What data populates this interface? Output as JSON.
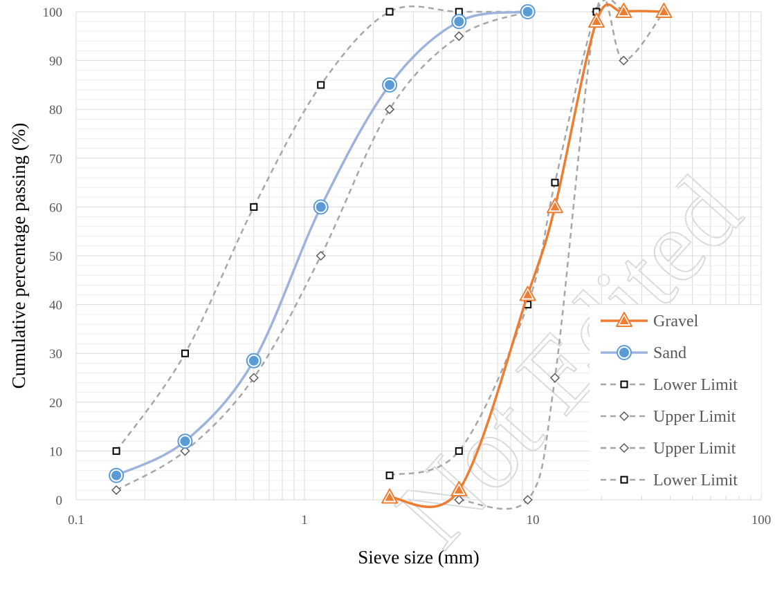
{
  "chart_data": {
    "type": "line",
    "xscale": "log",
    "xlabel": "Sieve size (mm)",
    "ylabel": "Cumulative percentage passing (%)",
    "xlim": [
      0.1,
      100
    ],
    "ylim": [
      0,
      100
    ],
    "x_ticks": [
      "0.1",
      "1",
      "10",
      "100"
    ],
    "y_ticks": [
      "0",
      "10",
      "20",
      "30",
      "40",
      "50",
      "60",
      "70",
      "80",
      "90",
      "100"
    ],
    "grid": true,
    "legend_position": "bottom-right",
    "watermark": "Not Edited",
    "series": [
      {
        "name": "Gravel",
        "color": "#ed7d31",
        "line": "solid",
        "marker": "triangle",
        "x": [
          2.36,
          4.75,
          9.5,
          12.5,
          19,
          25,
          37.5
        ],
        "y": [
          0.5,
          2,
          42,
          60,
          98,
          100,
          100
        ]
      },
      {
        "name": "Sand",
        "color": "#9db3dd",
        "marker_color": "#5b9bd5",
        "line": "solid",
        "marker": "circle",
        "x": [
          0.15,
          0.3,
          0.6,
          1.18,
          2.36,
          4.75,
          9.5
        ],
        "y": [
          5,
          12,
          28.5,
          60,
          85,
          98,
          100
        ]
      },
      {
        "name": "Lower Limit",
        "color": "#a6a6a6",
        "line": "dashed",
        "marker": "square",
        "x": [
          0.15,
          0.3,
          0.6,
          1.18,
          2.36,
          4.75,
          9.5
        ],
        "y": [
          10,
          30,
          60,
          85,
          100,
          100,
          100
        ]
      },
      {
        "name": "Upper Limit",
        "color": "#a6a6a6",
        "line": "dashed",
        "marker": "diamond",
        "x": [
          0.15,
          0.3,
          0.6,
          1.18,
          2.36,
          4.75,
          9.5
        ],
        "y": [
          2,
          10,
          25,
          50,
          80,
          95,
          100
        ]
      },
      {
        "name": "Upper Limit",
        "color": "#a6a6a6",
        "line": "dashed",
        "marker": "diamond",
        "x": [
          4.75,
          9.5,
          12.5,
          19,
          25,
          37.5
        ],
        "y": [
          0,
          0,
          25,
          100,
          90,
          100
        ]
      },
      {
        "name": "Lower Limit",
        "color": "#a6a6a6",
        "line": "dashed",
        "marker": "square",
        "x": [
          2.36,
          4.75,
          9.5,
          12.5,
          19,
          25
        ],
        "y": [
          5,
          10,
          40,
          65,
          100,
          100
        ]
      }
    ]
  }
}
